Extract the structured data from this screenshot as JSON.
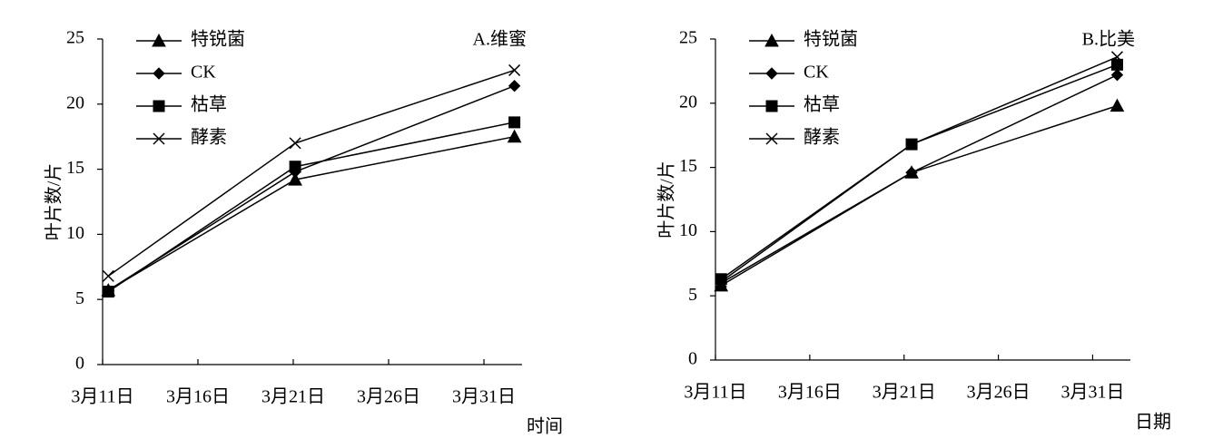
{
  "chart_data": [
    {
      "type": "line",
      "title": "A.维蜜",
      "x_label": "时间",
      "y_label": "叶片数/片",
      "x": [
        11.3,
        21.1,
        32.6
      ],
      "xlim": [
        11,
        33
      ],
      "xticks": [
        {
          "value": 11,
          "label": "3月11日"
        },
        {
          "value": 16,
          "label": "3月16日"
        },
        {
          "value": 21,
          "label": "3月21日"
        },
        {
          "value": 26,
          "label": "3月26日"
        },
        {
          "value": 31,
          "label": "3月31日"
        }
      ],
      "ylim": [
        0,
        25
      ],
      "yticks": [
        0,
        5,
        10,
        15,
        20,
        25
      ],
      "legend": "upper left",
      "series": [
        {
          "name": "特锐菌",
          "color": "#000000",
          "marker": "triangle",
          "values": [
            5.7,
            14.2,
            17.5
          ]
        },
        {
          "name": "CK",
          "color": "#000000",
          "marker": "diamond",
          "values": [
            5.7,
            14.8,
            21.4
          ]
        },
        {
          "name": "枯草",
          "color": "#000000",
          "marker": "square",
          "values": [
            5.6,
            15.2,
            18.6
          ]
        },
        {
          "name": "酵素",
          "color": "#000000",
          "marker": "x",
          "values": [
            6.8,
            17.0,
            22.6
          ]
        }
      ]
    },
    {
      "type": "line",
      "title": "B.比美",
      "x_label": "日期",
      "y_label": "叶片数/片",
      "x": [
        11.3,
        21.4,
        32.3
      ],
      "xlim": [
        11,
        33
      ],
      "xticks": [
        {
          "value": 11,
          "label": "3月11日"
        },
        {
          "value": 16,
          "label": "3月16日"
        },
        {
          "value": 21,
          "label": "3月21日"
        },
        {
          "value": 26,
          "label": "3月26日"
        },
        {
          "value": 31,
          "label": "3月31日"
        }
      ],
      "ylim": [
        0,
        25
      ],
      "yticks": [
        0,
        5,
        10,
        15,
        20,
        25
      ],
      "legend": "upper left",
      "series": [
        {
          "name": "特锐菌",
          "color": "#000000",
          "marker": "triangle",
          "values": [
            5.8,
            14.6,
            19.8
          ]
        },
        {
          "name": "CK",
          "color": "#000000",
          "marker": "diamond",
          "values": [
            6.0,
            14.6,
            22.2
          ]
        },
        {
          "name": "枯草",
          "color": "#000000",
          "marker": "square",
          "values": [
            6.3,
            16.8,
            23.0
          ]
        },
        {
          "name": "酵素",
          "color": "#000000",
          "marker": "x",
          "values": [
            6.1,
            16.8,
            23.6
          ]
        }
      ]
    }
  ]
}
